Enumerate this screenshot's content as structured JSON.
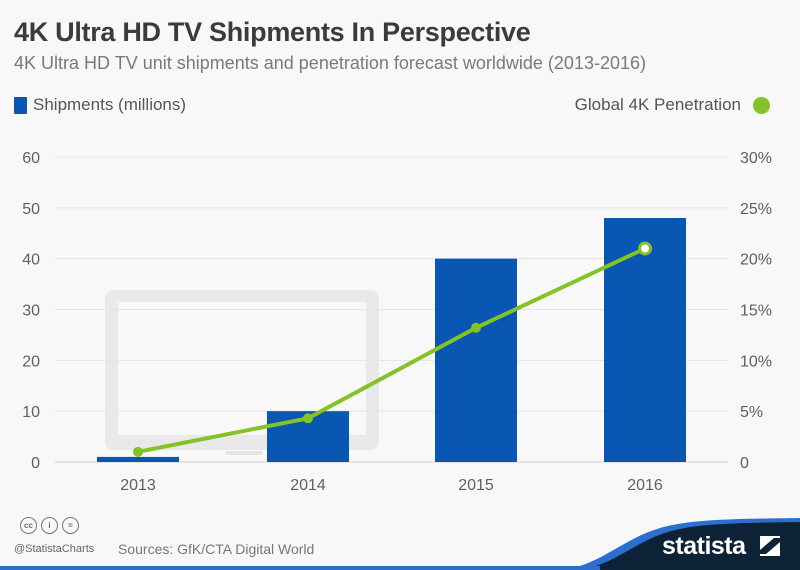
{
  "header": {
    "title": "4K Ultra HD TV Shipments In Perspective",
    "subtitle": "4K Ultra HD TV unit shipments and penetration forecast worldwide (2013-2016)"
  },
  "legend": {
    "left_label": "Shipments (millions)",
    "right_label": "Global 4K Penetration"
  },
  "colors": {
    "bar": "#0a56b3",
    "line": "#84c225",
    "grid": "#e4e4e4",
    "brand_dark": "#0d2236",
    "brand_blue": "#2b6fd0"
  },
  "chart_data": {
    "type": "bar",
    "title": "4K Ultra HD TV Shipments In Perspective",
    "subtitle": "4K Ultra HD TV unit shipments and penetration forecast worldwide (2013-2016)",
    "categories": [
      "2013",
      "2014",
      "2015",
      "2016"
    ],
    "series": [
      {
        "name": "Shipments (millions)",
        "type": "bar",
        "axis": "left",
        "values": [
          1,
          10,
          40,
          48
        ]
      },
      {
        "name": "Global 4K Penetration",
        "type": "line",
        "axis": "right",
        "values": [
          1,
          4.3,
          13.2,
          21
        ],
        "unit": "%"
      }
    ],
    "left_axis": {
      "ylim": [
        0,
        60
      ],
      "ticks": [
        "0",
        "10",
        "20",
        "30",
        "40",
        "50",
        "60"
      ]
    },
    "right_axis": {
      "ylim": [
        0,
        30
      ],
      "ticks": [
        "0",
        "5%",
        "10%",
        "15%",
        "20%",
        "25%",
        "30%"
      ]
    },
    "xlabel": "",
    "ylabel": "",
    "grid": true,
    "legend_placement": "top"
  },
  "footer": {
    "handle": "@StatistaCharts",
    "source": "Sources: GfK/CTA Digital World",
    "brand": "statista",
    "license_icons": [
      "cc",
      "by",
      "nd"
    ]
  }
}
